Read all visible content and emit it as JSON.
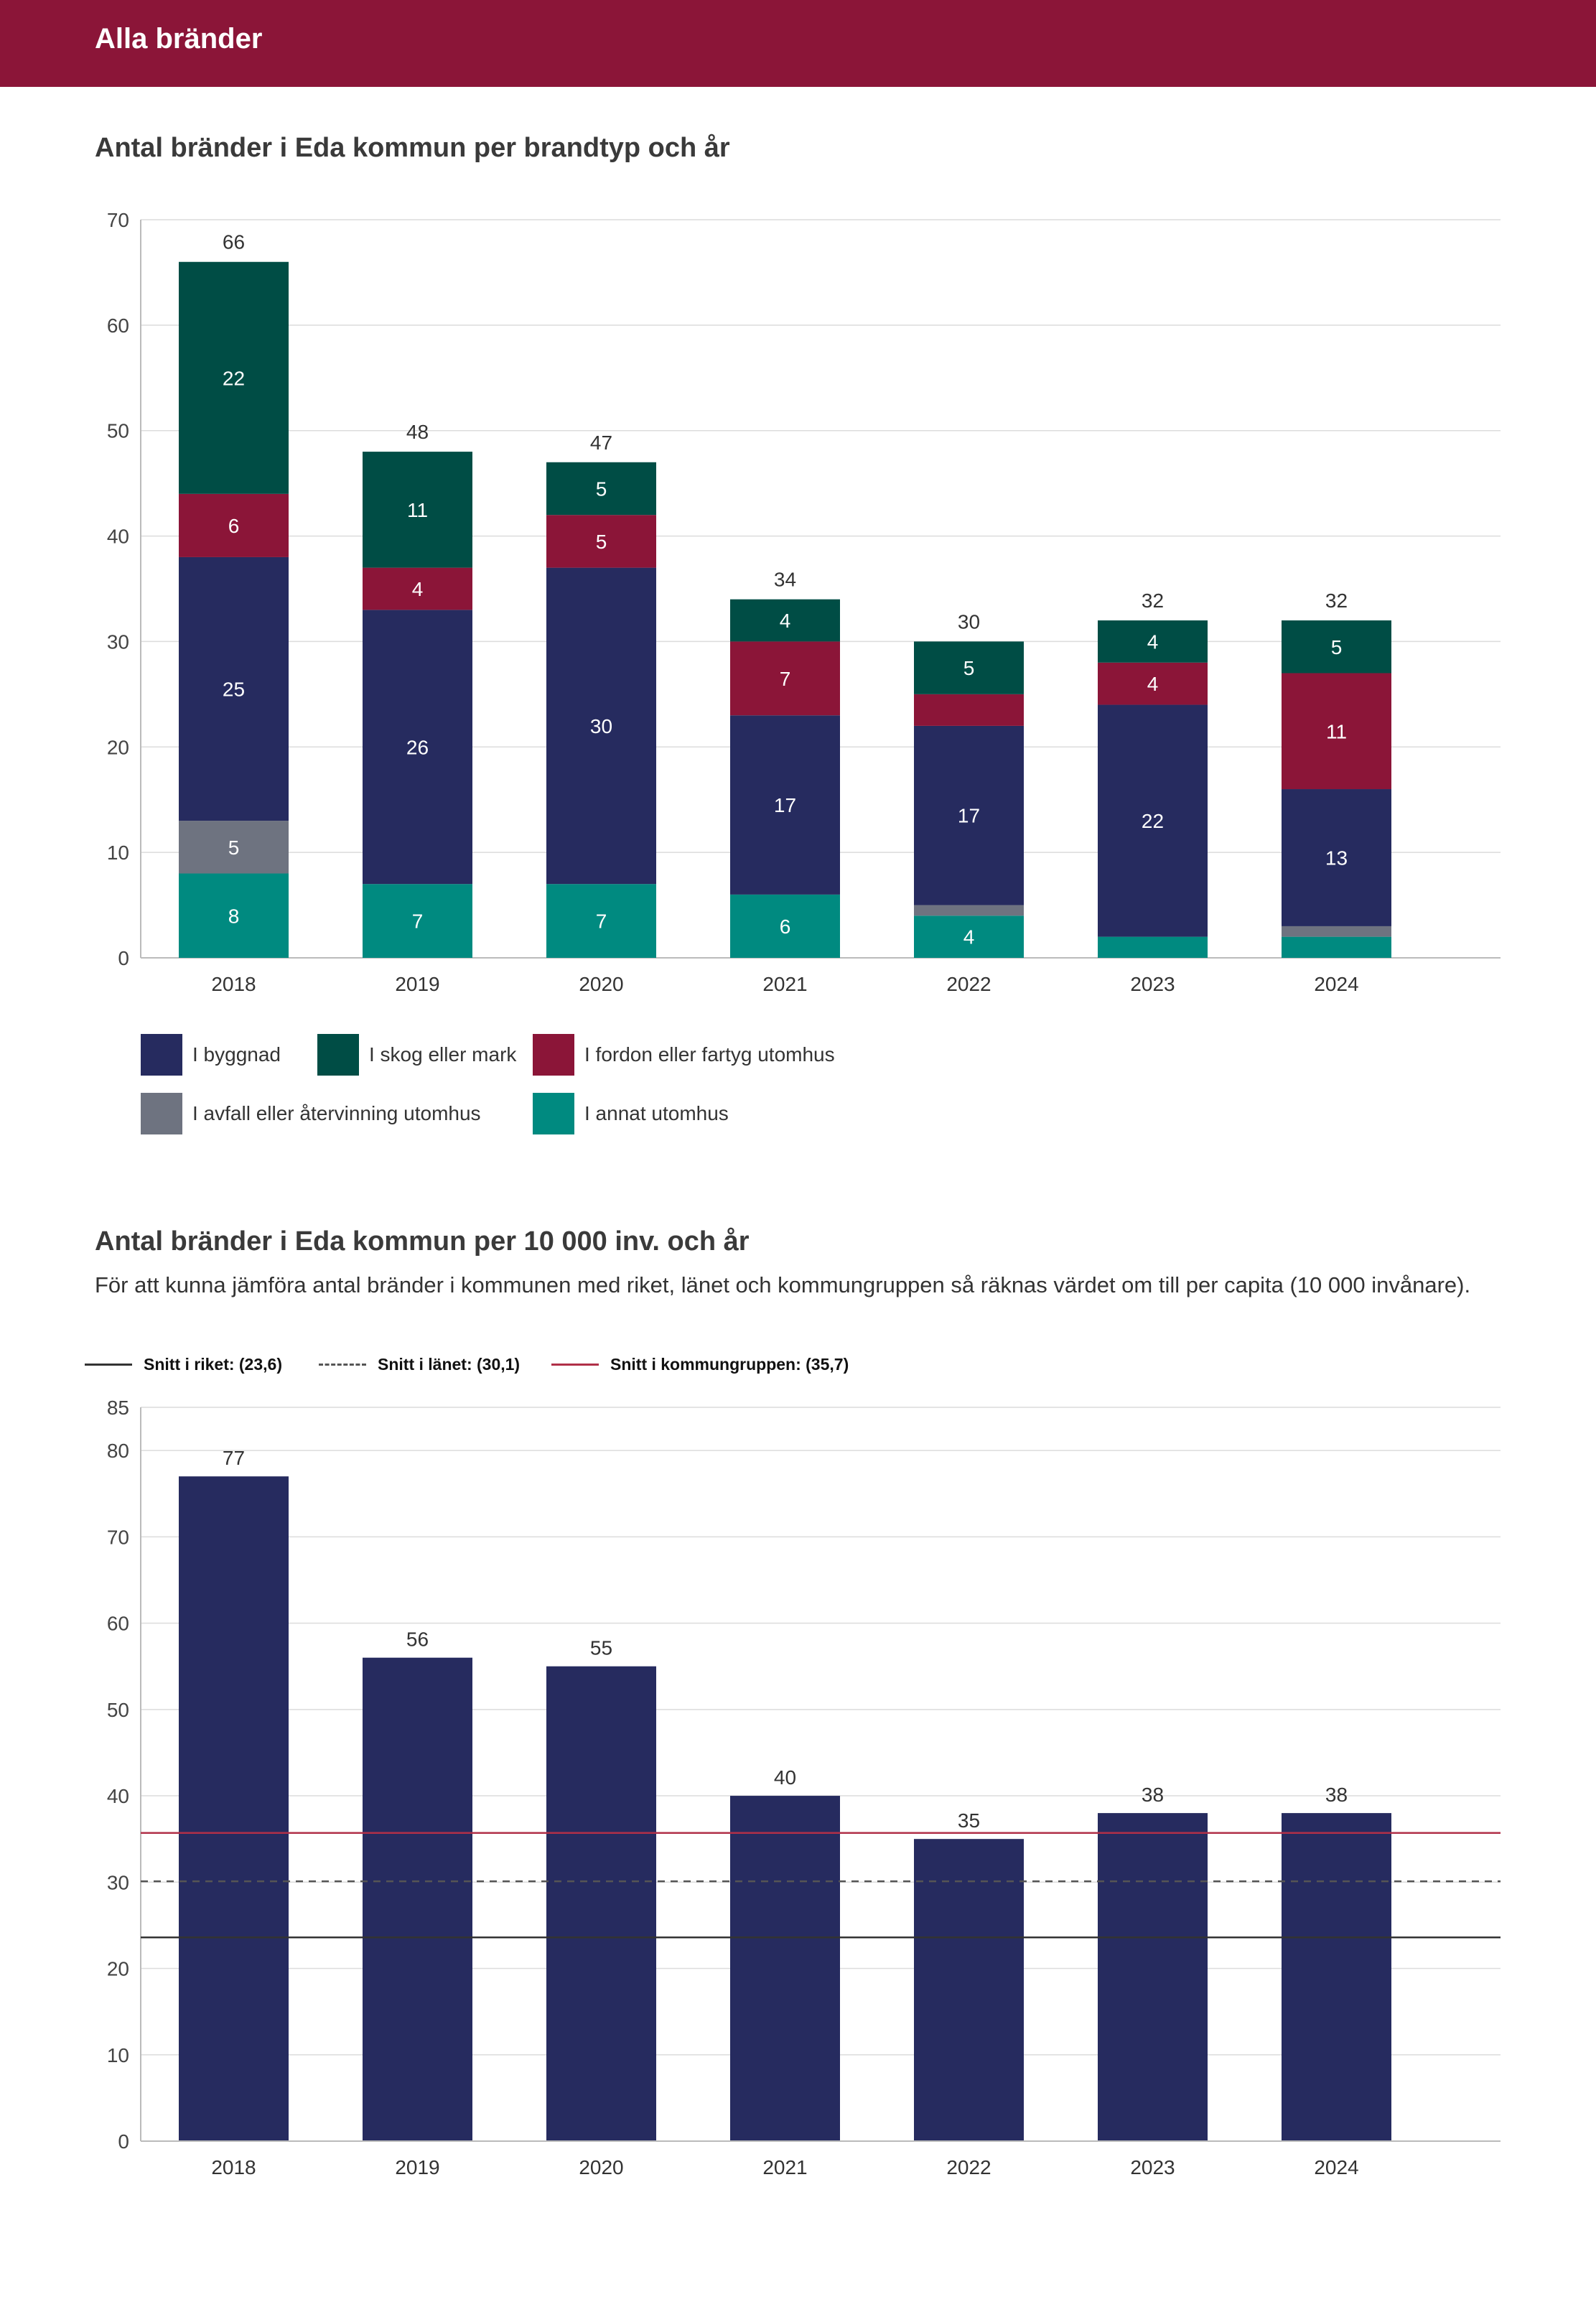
{
  "header": {
    "title": "Alla bränder"
  },
  "colors": {
    "header_bg": "#8b1538",
    "byggnad": "#262b5f",
    "skog": "#004d45",
    "fordon": "#8b1538",
    "avfall": "#6e7380",
    "annat": "#008a80",
    "bar": "#262b5f",
    "riket": "#333333",
    "lanet": "#555555",
    "kommungruppen": "#b03048"
  },
  "section1": {
    "title": "Antal bränder i Eda kommun per brandtyp och år"
  },
  "section2": {
    "title": "Antal bränder i Eda kommun per 10 000 inv. och år",
    "description": "För att kunna jämföra antal bränder i kommunen med riket, länet och kommungruppen så räknas värdet om till per capita (10 000 invånare)."
  },
  "reference_lines": [
    {
      "label": "Snitt i riket: (23,6)",
      "value": 23.6,
      "style": "solid",
      "color_key": "riket"
    },
    {
      "label": "Snitt i länet: (30,1)",
      "value": 30.1,
      "style": "dashed",
      "color_key": "lanet"
    },
    {
      "label": "Snitt i kommungruppen: (35,7)",
      "value": 35.7,
      "style": "solid",
      "color_key": "kommungruppen"
    }
  ],
  "chart_data": [
    {
      "type": "bar",
      "stacked": true,
      "title": "Antal bränder i Eda kommun per brandtyp och år",
      "categories": [
        "2018",
        "2019",
        "2020",
        "2021",
        "2022",
        "2023",
        "2024"
      ],
      "ylim": [
        0,
        70
      ],
      "yticks": [
        0,
        10,
        20,
        30,
        40,
        50,
        60,
        70
      ],
      "grid": true,
      "legend_position": "bottom-left",
      "totals": [
        66,
        48,
        47,
        34,
        30,
        32,
        32
      ],
      "series": [
        {
          "name": "I annat utomhus",
          "color_key": "annat",
          "values": [
            8,
            7,
            7,
            6,
            4,
            2,
            2
          ],
          "labels": [
            "8",
            "7",
            "7",
            "6",
            "4",
            "",
            ""
          ]
        },
        {
          "name": "I avfall eller återvinning utomhus",
          "color_key": "avfall",
          "values": [
            5,
            0,
            0,
            0,
            1,
            0,
            1
          ],
          "labels": [
            "5",
            "",
            "",
            "",
            "",
            "",
            ""
          ]
        },
        {
          "name": "I byggnad",
          "color_key": "byggnad",
          "values": [
            25,
            26,
            30,
            17,
            17,
            22,
            13
          ],
          "labels": [
            "25",
            "26",
            "30",
            "17",
            "17",
            "22",
            "13"
          ]
        },
        {
          "name": "I fordon eller fartyg utomhus",
          "color_key": "fordon",
          "values": [
            6,
            4,
            5,
            7,
            3,
            4,
            11
          ],
          "labels": [
            "6",
            "4",
            "5",
            "7",
            "",
            "4",
            "11"
          ]
        },
        {
          "name": "I skog eller mark",
          "color_key": "skog",
          "values": [
            22,
            11,
            5,
            4,
            5,
            4,
            5
          ],
          "labels": [
            "22",
            "11",
            "5",
            "4",
            "5",
            "4",
            "5"
          ]
        }
      ],
      "legend": [
        {
          "name": "I byggnad",
          "color_key": "byggnad"
        },
        {
          "name": "I skog eller mark",
          "color_key": "skog"
        },
        {
          "name": "I fordon eller fartyg utomhus",
          "color_key": "fordon"
        },
        {
          "name": "I avfall eller återvinning utomhus",
          "color_key": "avfall"
        },
        {
          "name": "I annat utomhus",
          "color_key": "annat"
        }
      ]
    },
    {
      "type": "bar",
      "title": "Antal bränder i Eda kommun per 10 000 inv. och år",
      "categories": [
        "2018",
        "2019",
        "2020",
        "2021",
        "2022",
        "2023",
        "2024"
      ],
      "values": [
        77,
        56,
        55,
        40,
        35,
        38,
        38
      ],
      "value_labels": [
        "77",
        "56",
        "55",
        "40",
        "35",
        "38",
        "38"
      ],
      "ylim": [
        0,
        85
      ],
      "yticks": [
        0,
        10,
        20,
        30,
        40,
        50,
        60,
        70,
        80,
        85
      ],
      "grid": true
    }
  ]
}
